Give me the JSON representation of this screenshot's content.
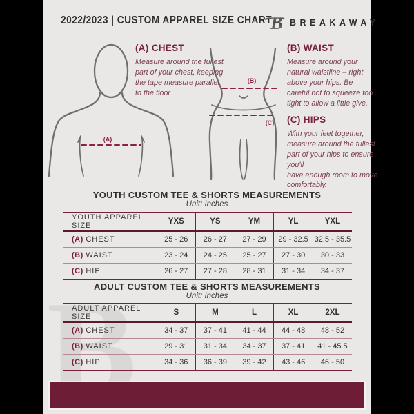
{
  "header": {
    "title": "2022/2023  |  CUSTOM APPAREL SIZE CHART",
    "brand": "BREAKAWAY",
    "logo_icon": "breakaway-b-logo"
  },
  "guide": {
    "chest": {
      "heading": "(A) CHEST",
      "marker": "(A)",
      "body": "Measure around the fullest part of your chest, keeping the tape measure parallel to the floor"
    },
    "waist": {
      "heading": "(B) WAIST",
      "marker": "(B)",
      "body": "Measure around your natural waistline – right above your hips. Be careful not to squeeze too tight to allow a little give."
    },
    "hips": {
      "heading": "(C) HIPS",
      "marker": "(C)",
      "body": "With your feet together, measure around the fullest part of your hips to ensure you'll\nhave enough room to move comfortably."
    }
  },
  "youth_table": {
    "title": "YOUTH CUSTOM TEE & SHORTS MEASUREMENTS",
    "unit": "Unit: Inches",
    "header_row": [
      "YOUTH APPAREL SIZE",
      "YXS",
      "YS",
      "YM",
      "YL",
      "YXL"
    ],
    "rows": [
      {
        "label_prefix": "(A)",
        "label": "CHEST",
        "values": [
          "25 - 26",
          "26 - 27",
          "27 - 29",
          "29 - 32.5",
          "32.5 - 35.5"
        ]
      },
      {
        "label_prefix": "(B)",
        "label": "WAIST",
        "values": [
          "23 - 24",
          "24 - 25",
          "25 - 27",
          "27 - 30",
          "30 - 33"
        ]
      },
      {
        "label_prefix": "(C)",
        "label": "HIP",
        "values": [
          "26 - 27",
          "27 - 28",
          "28 - 31",
          "31 - 34",
          "34 - 37"
        ]
      }
    ]
  },
  "adult_table": {
    "title": "ADULT CUSTOM TEE & SHORTS MEASUREMENTS",
    "unit": "Unit: Inches",
    "header_row": [
      "ADULT APPAREL SIZE",
      "S",
      "M",
      "L",
      "XL",
      "2XL"
    ],
    "rows": [
      {
        "label_prefix": "(A)",
        "label": "CHEST",
        "values": [
          "34 - 37",
          "37 - 41",
          "41 - 44",
          "44 - 48",
          "48 - 52"
        ]
      },
      {
        "label_prefix": "(B)",
        "label": "WAIST",
        "values": [
          "29 - 31",
          "31 - 34",
          "34 - 37",
          "37 - 41",
          "41 - 45.5"
        ]
      },
      {
        "label_prefix": "(C)",
        "label": "HIP",
        "values": [
          "34 - 36",
          "36 - 39",
          "39 - 42",
          "43 - 46",
          "46 - 50"
        ]
      }
    ]
  },
  "watermark": {
    "letter": "B"
  },
  "colors": {
    "bg": "#E9E8E6",
    "ink": "#2F2F2F",
    "accent": "#7A203C",
    "accent_dark": "#5E1830",
    "dash": "#8D2140",
    "row_line": "#B58896",
    "body_text": "#7C4257",
    "footer": "#6E1D37",
    "figure": "#6F6F6F"
  }
}
